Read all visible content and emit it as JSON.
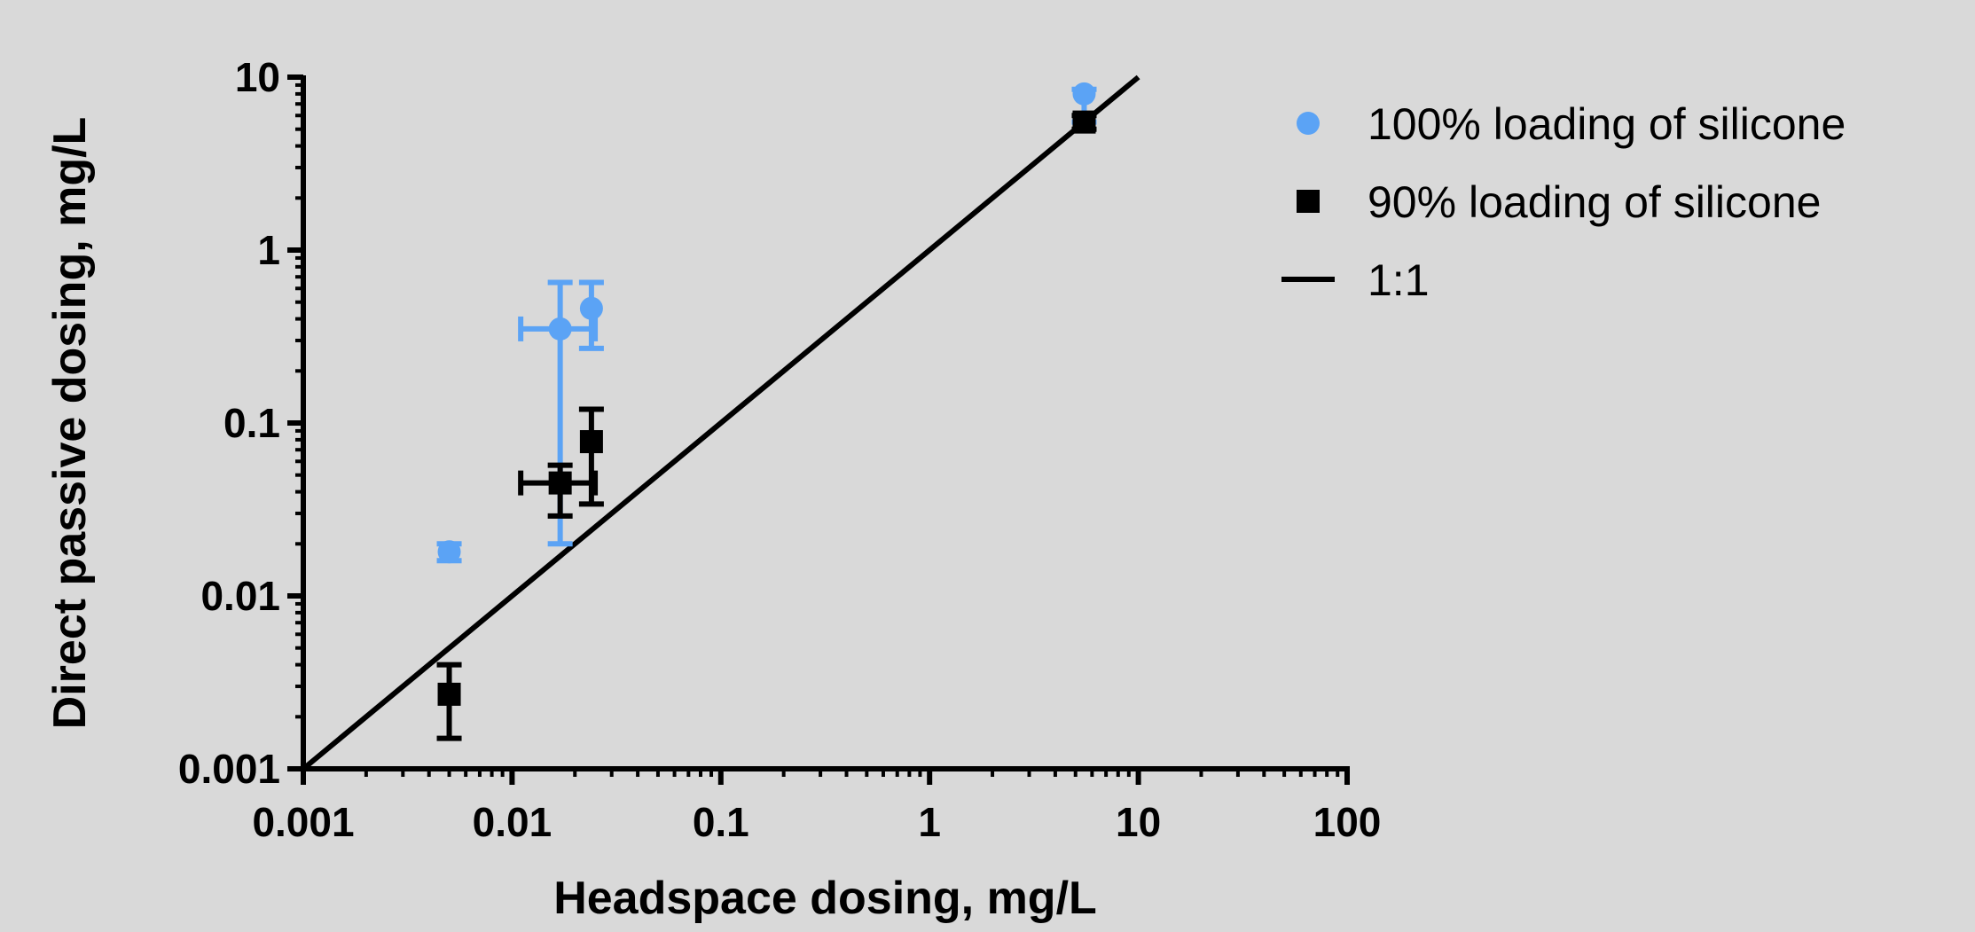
{
  "chart_data": {
    "type": "scatter",
    "title": "",
    "xlabel": "Headspace dosing, mg/L",
    "ylabel": "Direct passive dosing, mg/L",
    "x_scale": "log",
    "y_scale": "log",
    "xlim": [
      0.001,
      100
    ],
    "ylim": [
      0.001,
      10
    ],
    "x_ticks": [
      "0.001",
      "0.01",
      "0.1",
      "1",
      "10",
      "100"
    ],
    "y_ticks": [
      "0.001",
      "0.01",
      "0.1",
      "1",
      "10"
    ],
    "grid": false,
    "legend_position": "right",
    "series": [
      {
        "name": "100% loading of silicone",
        "marker": "circle",
        "color": "#5ba3f5",
        "points": [
          {
            "x": 0.005,
            "y": 0.018,
            "ylo": 0.016,
            "yhi": 0.02,
            "xlo": null,
            "xhi": null
          },
          {
            "x": 0.017,
            "y": 0.35,
            "ylo": 0.02,
            "yhi": 0.65,
            "xlo": 0.011,
            "xhi": 0.025
          },
          {
            "x": 0.024,
            "y": 0.46,
            "ylo": 0.27,
            "yhi": 0.65,
            "xlo": null,
            "xhi": null
          },
          {
            "x": 5.5,
            "y": 8.0,
            "ylo": 5.5,
            "yhi": 8.5,
            "xlo": null,
            "xhi": null
          }
        ]
      },
      {
        "name": "90% loading of silicone",
        "marker": "square",
        "color": "#000000",
        "points": [
          {
            "x": 0.005,
            "y": 0.0027,
            "ylo": 0.0015,
            "yhi": 0.004,
            "xlo": null,
            "xhi": null
          },
          {
            "x": 0.017,
            "y": 0.045,
            "ylo": 0.029,
            "yhi": 0.057,
            "xlo": 0.011,
            "xhi": 0.025
          },
          {
            "x": 0.024,
            "y": 0.078,
            "ylo": 0.034,
            "yhi": 0.12,
            "xlo": null,
            "xhi": null
          },
          {
            "x": 5.5,
            "y": 5.5,
            "ylo": 5.0,
            "yhi": 6.0,
            "xlo": null,
            "xhi": null
          }
        ]
      }
    ],
    "reference_line": {
      "name": "1:1",
      "color": "#000000",
      "points": [
        {
          "x": 0.001,
          "y": 0.001
        },
        {
          "x": 10,
          "y": 10
        }
      ]
    }
  }
}
